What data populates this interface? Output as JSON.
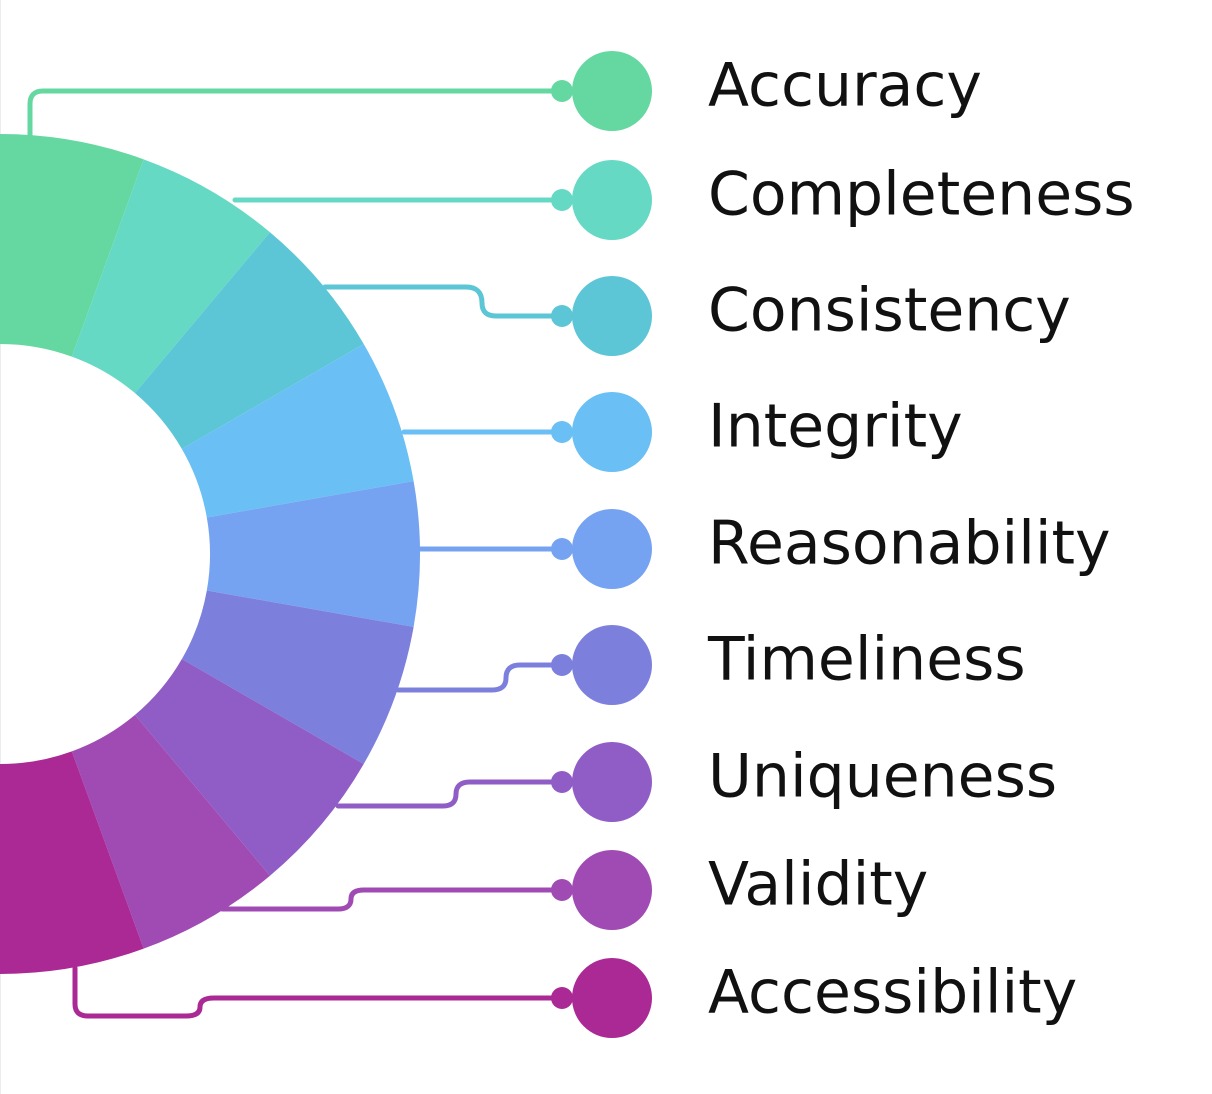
{
  "dimensions": [
    {
      "label": "Accuracy",
      "color": "#65D8A1"
    },
    {
      "label": "Completeness",
      "color": "#66D9C5"
    },
    {
      "label": "Consistency",
      "color": "#5CC6D6"
    },
    {
      "label": "Integrity",
      "color": "#6ABFF5"
    },
    {
      "label": "Reasonability",
      "color": "#76A3F1"
    },
    {
      "label": "Timeliness",
      "color": "#7C80DC"
    },
    {
      "label": "Uniqueness",
      "color": "#8F5DC5"
    },
    {
      "label": "Validity",
      "color": "#A04BB3"
    },
    {
      "label": "Accessibility",
      "color": "#AA2995"
    }
  ]
}
